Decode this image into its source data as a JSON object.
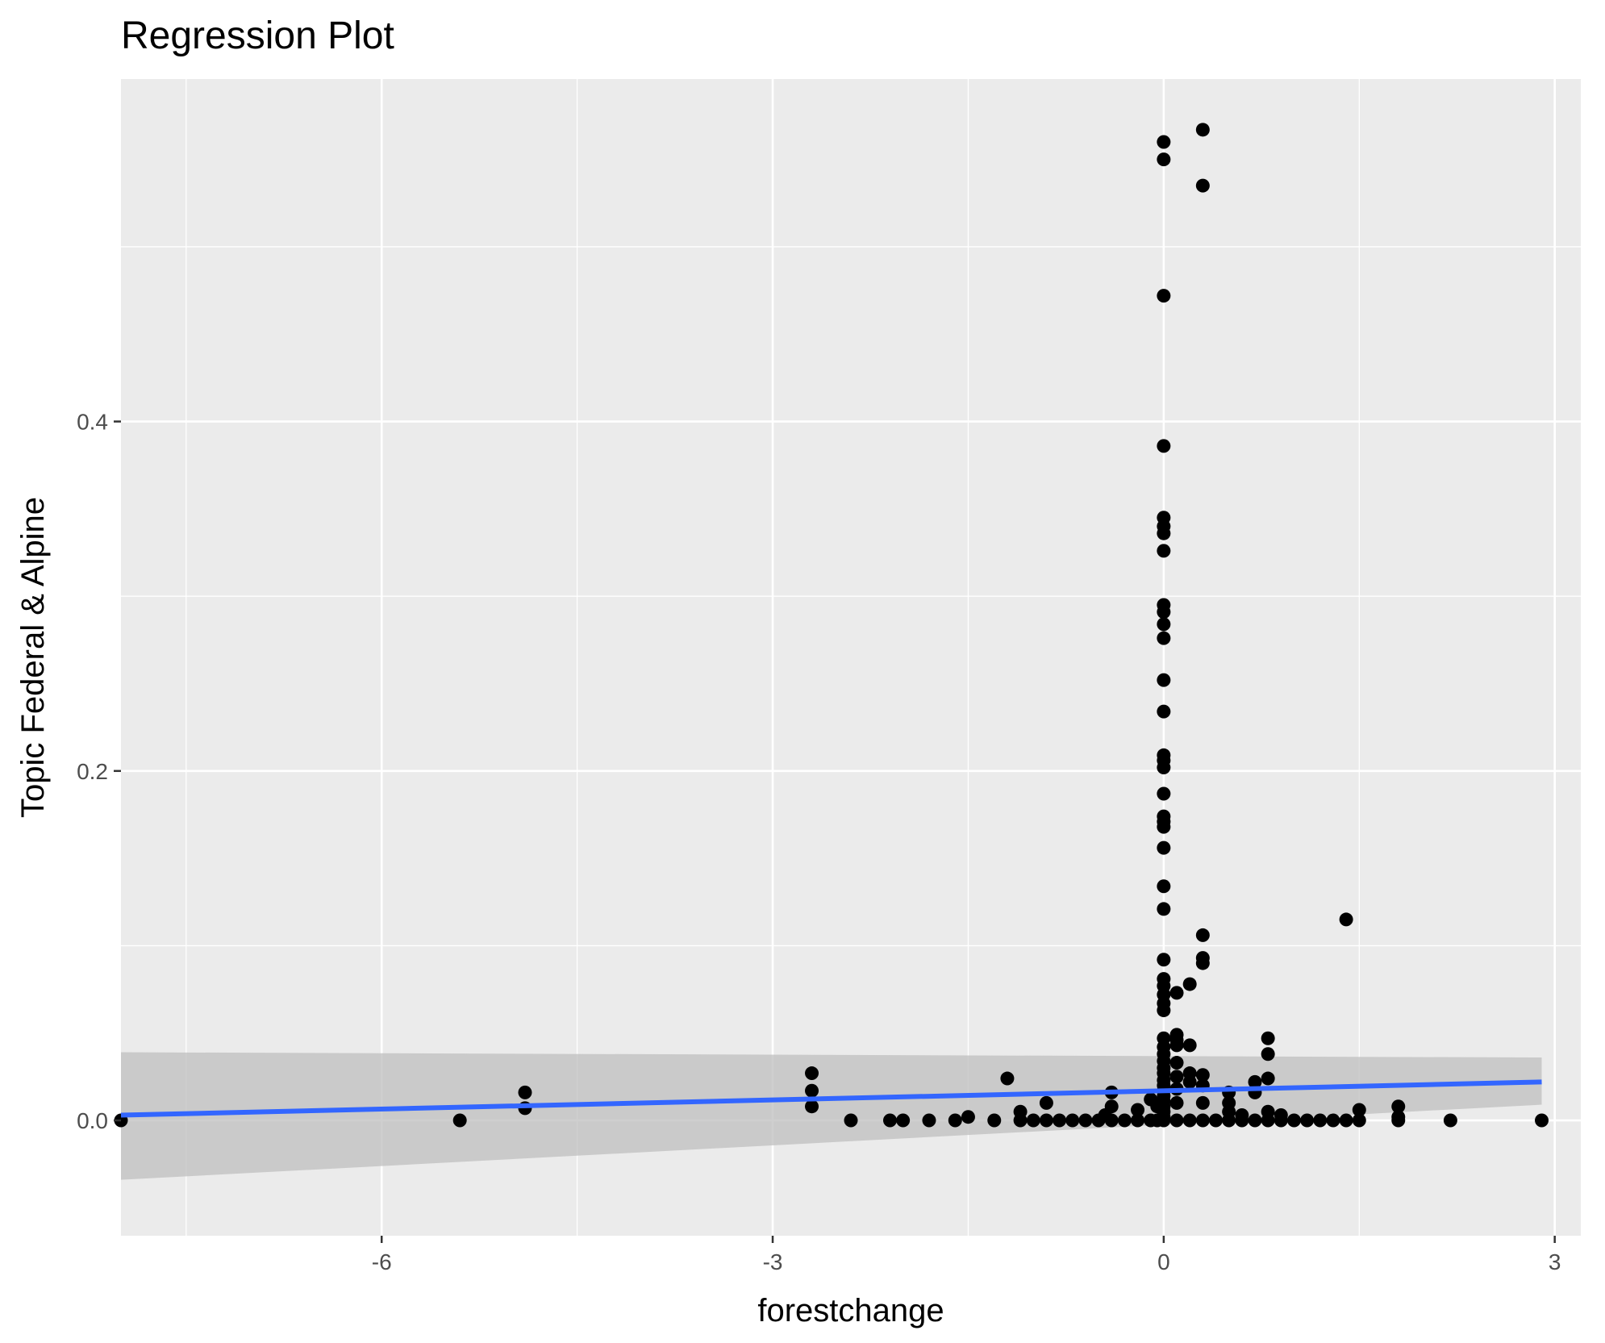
{
  "chart_data": {
    "type": "scatter",
    "title": "Regression Plot",
    "xlabel": "forestchange",
    "ylabel": "Topic Federal & Alpine",
    "xlim": [
      -8.0,
      3.2
    ],
    "ylim": [
      -0.066,
      0.596
    ],
    "x_ticks": [
      -6,
      -3,
      0,
      3
    ],
    "x_tick_labels": [
      "-6",
      "-3",
      "0",
      "3"
    ],
    "y_ticks": [
      0.0,
      0.2,
      0.4
    ],
    "y_tick_labels": [
      "0.0",
      "0.2",
      "0.4"
    ],
    "grid": true,
    "legend": "none",
    "colors": {
      "panel": "#ebebeb",
      "grid": "#ffffff",
      "points": "#000000",
      "line": "#3366ff",
      "band": "#bfbfbf"
    },
    "series": [
      {
        "points": [
          [
            -8.0,
            0.0
          ],
          [
            -5.4,
            0.0
          ],
          [
            -4.9,
            0.016
          ],
          [
            -4.9,
            0.007
          ],
          [
            -2.7,
            0.027
          ],
          [
            -2.7,
            0.017
          ],
          [
            -2.7,
            0.008
          ],
          [
            -2.4,
            0.0
          ],
          [
            -2.1,
            0.0
          ],
          [
            -2.0,
            0.0
          ],
          [
            -1.8,
            0.0
          ],
          [
            -1.6,
            0.0
          ],
          [
            -1.5,
            0.002
          ],
          [
            -1.3,
            0.0
          ],
          [
            -1.2,
            0.024
          ],
          [
            -1.1,
            0.005
          ],
          [
            -1.1,
            0.0
          ],
          [
            -1.0,
            0.0
          ],
          [
            -0.9,
            0.01
          ],
          [
            -0.9,
            0.0
          ],
          [
            -0.8,
            0.0
          ],
          [
            -0.7,
            0.0
          ],
          [
            -0.6,
            0.0
          ],
          [
            -0.5,
            0.0
          ],
          [
            -0.45,
            0.003
          ],
          [
            -0.4,
            0.016
          ],
          [
            -0.4,
            0.008
          ],
          [
            -0.4,
            0.0
          ],
          [
            -0.3,
            0.0
          ],
          [
            -0.2,
            0.006
          ],
          [
            -0.2,
            0.0
          ],
          [
            -0.1,
            0.012
          ],
          [
            -0.1,
            0.0
          ],
          [
            -0.05,
            0.008
          ],
          [
            -0.05,
            0.0
          ],
          [
            0.0,
            0.56
          ],
          [
            0.0,
            0.55
          ],
          [
            0.0,
            0.472
          ],
          [
            0.0,
            0.386
          ],
          [
            0.0,
            0.345
          ],
          [
            0.0,
            0.34
          ],
          [
            0.0,
            0.336
          ],
          [
            0.0,
            0.326
          ],
          [
            0.0,
            0.295
          ],
          [
            0.0,
            0.291
          ],
          [
            0.0,
            0.284
          ],
          [
            0.0,
            0.276
          ],
          [
            0.0,
            0.252
          ],
          [
            0.0,
            0.234
          ],
          [
            0.0,
            0.209
          ],
          [
            0.0,
            0.206
          ],
          [
            0.0,
            0.202
          ],
          [
            0.0,
            0.187
          ],
          [
            0.0,
            0.174
          ],
          [
            0.0,
            0.171
          ],
          [
            0.0,
            0.168
          ],
          [
            0.0,
            0.156
          ],
          [
            0.0,
            0.134
          ],
          [
            0.0,
            0.121
          ],
          [
            0.0,
            0.092
          ],
          [
            0.0,
            0.081
          ],
          [
            0.0,
            0.077
          ],
          [
            0.0,
            0.072
          ],
          [
            0.0,
            0.067
          ],
          [
            0.0,
            0.063
          ],
          [
            0.0,
            0.047
          ],
          [
            0.0,
            0.042
          ],
          [
            0.0,
            0.038
          ],
          [
            0.0,
            0.034
          ],
          [
            0.0,
            0.03
          ],
          [
            0.0,
            0.027
          ],
          [
            0.0,
            0.023
          ],
          [
            0.0,
            0.02
          ],
          [
            0.0,
            0.017
          ],
          [
            0.0,
            0.014
          ],
          [
            0.0,
            0.011
          ],
          [
            0.0,
            0.008
          ],
          [
            0.0,
            0.005
          ],
          [
            0.0,
            0.002
          ],
          [
            0.0,
            0.0
          ],
          [
            0.1,
            0.073
          ],
          [
            0.1,
            0.049
          ],
          [
            0.1,
            0.046
          ],
          [
            0.1,
            0.043
          ],
          [
            0.1,
            0.033
          ],
          [
            0.1,
            0.025
          ],
          [
            0.1,
            0.018
          ],
          [
            0.1,
            0.01
          ],
          [
            0.1,
            0.0
          ],
          [
            0.2,
            0.078
          ],
          [
            0.2,
            0.043
          ],
          [
            0.2,
            0.027
          ],
          [
            0.2,
            0.022
          ],
          [
            0.2,
            0.0
          ],
          [
            0.3,
            0.567
          ],
          [
            0.3,
            0.535
          ],
          [
            0.3,
            0.106
          ],
          [
            0.3,
            0.093
          ],
          [
            0.3,
            0.09
          ],
          [
            0.3,
            0.026
          ],
          [
            0.3,
            0.02
          ],
          [
            0.3,
            0.01
          ],
          [
            0.3,
            0.0
          ],
          [
            0.4,
            0.0
          ],
          [
            0.5,
            0.016
          ],
          [
            0.5,
            0.01
          ],
          [
            0.5,
            0.005
          ],
          [
            0.5,
            0.0
          ],
          [
            0.6,
            0.003
          ],
          [
            0.6,
            0.0
          ],
          [
            0.7,
            0.022
          ],
          [
            0.7,
            0.016
          ],
          [
            0.7,
            0.0
          ],
          [
            0.8,
            0.047
          ],
          [
            0.8,
            0.038
          ],
          [
            0.8,
            0.024
          ],
          [
            0.8,
            0.005
          ],
          [
            0.8,
            0.0
          ],
          [
            0.9,
            0.003
          ],
          [
            0.9,
            0.0
          ],
          [
            1.0,
            0.0
          ],
          [
            1.1,
            0.0
          ],
          [
            1.2,
            0.0
          ],
          [
            1.3,
            0.0
          ],
          [
            1.4,
            0.115
          ],
          [
            1.4,
            0.0
          ],
          [
            1.5,
            0.006
          ],
          [
            1.5,
            0.0
          ],
          [
            1.8,
            0.008
          ],
          [
            1.8,
            0.002
          ],
          [
            1.8,
            0.0
          ],
          [
            2.2,
            0.0
          ],
          [
            2.9,
            0.0
          ]
        ]
      }
    ],
    "fit": {
      "x": [
        -8.0,
        2.9
      ],
      "y": [
        0.003,
        0.022
      ],
      "ci_lower": [
        -0.034,
        0.009
      ],
      "ci_upper": [
        0.039,
        0.036
      ]
    }
  }
}
